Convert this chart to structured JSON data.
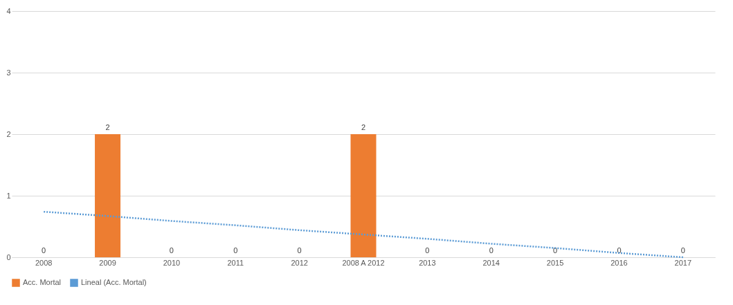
{
  "chart_data": {
    "type": "bar",
    "categories": [
      "2008",
      "2009",
      "2010",
      "2011",
      "2012",
      "2008 A 2012",
      "2013",
      "2014",
      "2015",
      "2016",
      "2017"
    ],
    "series": [
      {
        "name": "Acc. Mortal",
        "color": "#ed7d31",
        "values": [
          0,
          2,
          0,
          0,
          0,
          2,
          0,
          0,
          0,
          0,
          0
        ],
        "value_labels": [
          "0",
          "2",
          "0",
          "0",
          "0",
          "2",
          "0",
          "0",
          "0",
          "0",
          "0"
        ]
      },
      {
        "name": "Lineal (Acc. Mortal)",
        "type": "line",
        "line_style": "dotted",
        "color": "#5b9bd5",
        "values": [
          0.74,
          0.67,
          0.59,
          0.52,
          0.44,
          0.37,
          0.3,
          0.22,
          0.15,
          0.07,
          0.0
        ]
      }
    ],
    "ylim": [
      0,
      4
    ],
    "yticks": [
      0,
      1,
      2,
      3,
      4
    ],
    "grid": "y",
    "legend": "bottom"
  }
}
